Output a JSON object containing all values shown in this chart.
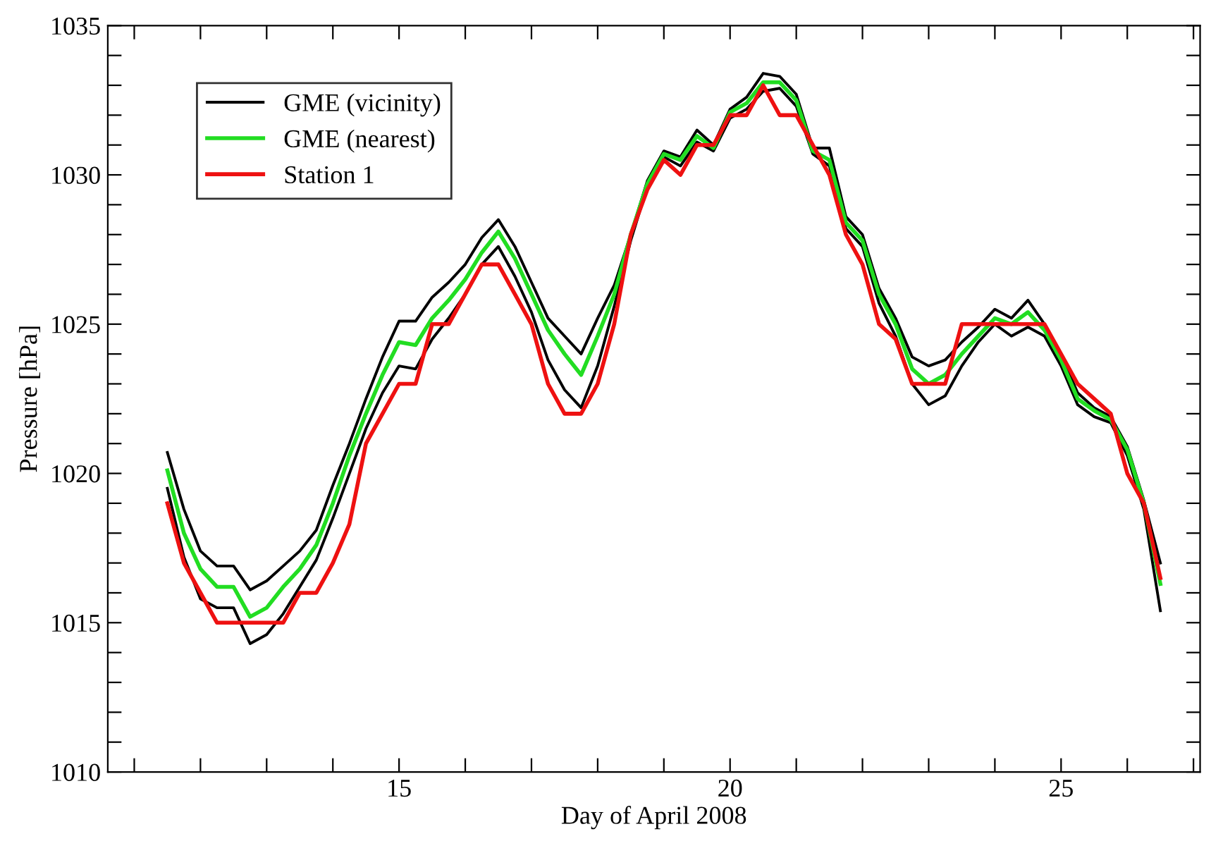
{
  "chart_data": {
    "type": "line",
    "xlabel": "Day of April 2008",
    "ylabel": "Pressure [hPa]",
    "x": [
      11.5,
      11.75,
      12,
      12.25,
      12.5,
      12.75,
      13,
      13.25,
      13.5,
      13.75,
      14,
      14.25,
      14.5,
      14.75,
      15,
      15.25,
      15.5,
      15.75,
      16,
      16.25,
      16.5,
      16.75,
      17,
      17.25,
      17.5,
      17.75,
      18,
      18.25,
      18.5,
      18.75,
      19,
      19.25,
      19.5,
      19.75,
      20,
      20.25,
      20.5,
      20.75,
      21,
      21.25,
      21.5,
      21.75,
      22,
      22.25,
      22.5,
      22.75,
      23,
      23.25,
      23.5,
      23.75,
      24,
      24.25,
      24.5,
      24.75,
      25,
      25.25,
      25.5,
      25.75,
      26,
      26.25,
      26.5
    ],
    "series": [
      {
        "name": "GME (vicinity)",
        "color": "#000000",
        "values": [
          1020.7,
          1018.8,
          1017.4,
          1016.9,
          1016.9,
          1016.1,
          1016.4,
          1016.9,
          1017.4,
          1018.1,
          1019.6,
          1021,
          1022.5,
          1023.9,
          1025.1,
          1025.1,
          1025.9,
          1026.4,
          1027,
          1027.9,
          1028.5,
          1027.6,
          1026.4,
          1025.2,
          1024.6,
          1024,
          1025.2,
          1026.3,
          1028,
          1029.8,
          1030.8,
          1030.6,
          1031.5,
          1031,
          1032.2,
          1032.6,
          1033.4,
          1033.3,
          1032.7,
          1030.9,
          1030.9,
          1028.6,
          1028,
          1026.2,
          1025.2,
          1023.9,
          1023.6,
          1023.8,
          1024.4,
          1024.9,
          1025.5,
          1025.2,
          1025.8,
          1025,
          1024,
          1022.7,
          1022.2,
          1021.9,
          1020.9,
          1019.1,
          1017
        ]
      },
      {
        "color": "#000000",
        "values": [
          1019.5,
          1017.2,
          1015.8,
          1015.5,
          1015.5,
          1014.3,
          1014.6,
          1015.3,
          1016.2,
          1017.1,
          1018.5,
          1020,
          1021.5,
          1022.7,
          1023.6,
          1023.5,
          1024.5,
          1025.2,
          1026,
          1027,
          1027.6,
          1026.6,
          1025.4,
          1023.8,
          1022.8,
          1022.2,
          1023.6,
          1025.6,
          1027.8,
          1029.6,
          1030.6,
          1030.3,
          1031.1,
          1030.8,
          1031.9,
          1032.2,
          1032.8,
          1032.9,
          1032.3,
          1030.7,
          1030.3,
          1028.2,
          1027.6,
          1025.7,
          1024.6,
          1023,
          1022.3,
          1022.6,
          1023.6,
          1024.4,
          1025,
          1024.6,
          1024.9,
          1024.6,
          1023.6,
          1022.3,
          1021.9,
          1021.7,
          1020.6,
          1018.8,
          1015.4
        ]
      },
      {
        "name": "GME (nearest)",
        "color": "#22dd22",
        "values": [
          1020.1,
          1018,
          1016.8,
          1016.2,
          1016.2,
          1015.2,
          1015.5,
          1016.2,
          1016.8,
          1017.6,
          1019,
          1020.6,
          1022,
          1023.3,
          1024.4,
          1024.3,
          1025.2,
          1025.8,
          1026.5,
          1027.4,
          1028.1,
          1027.2,
          1026,
          1024.8,
          1024,
          1023.3,
          1024.6,
          1026,
          1028,
          1029.7,
          1030.7,
          1030.5,
          1031.3,
          1030.9,
          1032.1,
          1032.4,
          1033.1,
          1033.1,
          1032.5,
          1030.8,
          1030.5,
          1028.4,
          1027.8,
          1026,
          1025,
          1023.5,
          1023,
          1023.3,
          1024,
          1024.6,
          1025.2,
          1025,
          1025.4,
          1024.8,
          1023.8,
          1022.5,
          1022.1,
          1021.8,
          1020.8,
          1019,
          1016.3
        ]
      },
      {
        "name": "Station 1",
        "color": "#ee1111",
        "values": [
          1019,
          1017,
          1016,
          1015,
          1015,
          1015,
          1015,
          1015,
          1016,
          1016,
          1017,
          1018.3,
          1021,
          1022,
          1023,
          1023,
          1025,
          1025,
          1026,
          1027,
          1027,
          1026,
          1025,
          1023,
          1022,
          1022,
          1023,
          1025,
          1028,
          1029.5,
          1030.5,
          1030,
          1031,
          1031,
          1032,
          1032,
          1033,
          1032,
          1032,
          1031,
          1030,
          1028,
          1027,
          1025,
          1024.5,
          1023,
          1023,
          1023,
          1025,
          1025,
          1025,
          1025,
          1025,
          1025,
          1024,
          1023,
          1022.5,
          1022,
          1020,
          1019,
          1016.5
        ]
      }
    ],
    "xlim": [
      10.6,
      27.1
    ],
    "xticks": [
      {
        "value": 11,
        "label": null
      },
      {
        "value": 12,
        "label": null
      },
      {
        "value": 13,
        "label": null
      },
      {
        "value": 14,
        "label": null
      },
      15,
      {
        "value": 16,
        "label": null
      },
      {
        "value": 17,
        "label": null
      },
      {
        "value": 18,
        "label": null
      },
      {
        "value": 19,
        "label": null
      },
      20,
      {
        "value": 21,
        "label": null
      },
      {
        "value": 22,
        "label": null
      },
      {
        "value": 23,
        "label": null
      },
      {
        "value": 24,
        "label": null
      },
      25,
      {
        "value": 26,
        "label": null
      },
      {
        "value": 27,
        "label": null
      }
    ],
    "ylim": [
      1010,
      1035
    ],
    "yticks": [
      1010,
      {
        "value": 1011,
        "label": null
      },
      {
        "value": 1012,
        "label": null
      },
      {
        "value": 1013,
        "label": null
      },
      {
        "value": 1014,
        "label": null
      },
      1015,
      {
        "value": 1016,
        "label": null
      },
      {
        "value": 1017,
        "label": null
      },
      {
        "value": 1018,
        "label": null
      },
      {
        "value": 1019,
        "label": null
      },
      1020,
      {
        "value": 1021,
        "label": null
      },
      {
        "value": 1022,
        "label": null
      },
      {
        "value": 1023,
        "label": null
      },
      {
        "value": 1024,
        "label": null
      },
      1025,
      {
        "value": 1026,
        "label": null
      },
      {
        "value": 1027,
        "label": null
      },
      {
        "value": 1028,
        "label": null
      },
      {
        "value": 1029,
        "label": null
      },
      1030,
      {
        "value": 1031,
        "label": null
      },
      {
        "value": 1032,
        "label": null
      },
      {
        "value": 1033,
        "label": null
      },
      {
        "value": 1034,
        "label": null
      },
      1035
    ],
    "grid": false,
    "legend": "top left",
    "marker": "none",
    "line_style": "solid"
  }
}
